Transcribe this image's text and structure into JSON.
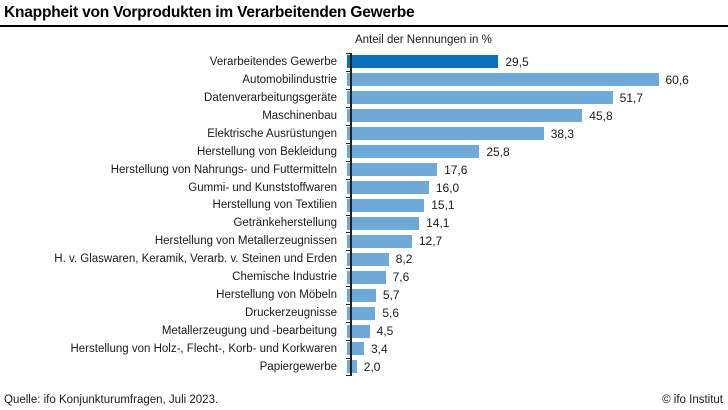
{
  "header": {
    "title": "Knappheit von Vorprodukten im Verarbeitenden Gewerbe"
  },
  "chart_data": {
    "type": "bar",
    "orientation": "horizontal",
    "subtitle": "Anteil der Nennungen in %",
    "categories": [
      "Verarbeitendes Gewerbe",
      "Automobilindustrie",
      "Datenverarbeitungsgeräte",
      "Maschinenbau",
      "Elektrische Ausrüstungen",
      "Herstellung von Bekleidung",
      "Herstellung von Nahrungs- und Futtermitteln",
      "Gummi- und Kunststoffwaren",
      "Herstellung von Textilien",
      "Getränkeherstellung",
      "Herstellung von Metallerzeugnissen",
      "H. v. Glaswaren, Keramik, Verarb. v. Steinen und Erden",
      "Chemische Industrie",
      "Herstellung von Möbeln",
      "Druckerzeugnisse",
      "Metallerzeugung und -bearbeitung",
      "Herstellung von Holz-, Flecht-, Korb- und Korkwaren",
      "Papiergewerbe"
    ],
    "values": [
      29.5,
      60.6,
      51.7,
      45.8,
      38.3,
      25.8,
      17.6,
      16.0,
      15.1,
      14.1,
      12.7,
      8.2,
      7.6,
      5.7,
      5.6,
      4.5,
      3.4,
      2.0
    ],
    "value_labels": [
      "29,5",
      "60,6",
      "51,7",
      "45,8",
      "38,3",
      "25,8",
      "17,6",
      "16,0",
      "15,1",
      "14,1",
      "12,7",
      "8,2",
      "7,6",
      "5,7",
      "5,6",
      "4,5",
      "3,4",
      "2,0"
    ],
    "highlight_index": 0,
    "colors": {
      "highlight": "#0a72bc",
      "default": "#6fa9d8",
      "axis": "#222222"
    },
    "xlim": [
      0,
      65
    ],
    "grid": "off",
    "legend": "none"
  },
  "footer": {
    "source": "Quelle: ifo Konjunkturumfragen, Juli 2023.",
    "copyright": "© ifo Institut"
  }
}
